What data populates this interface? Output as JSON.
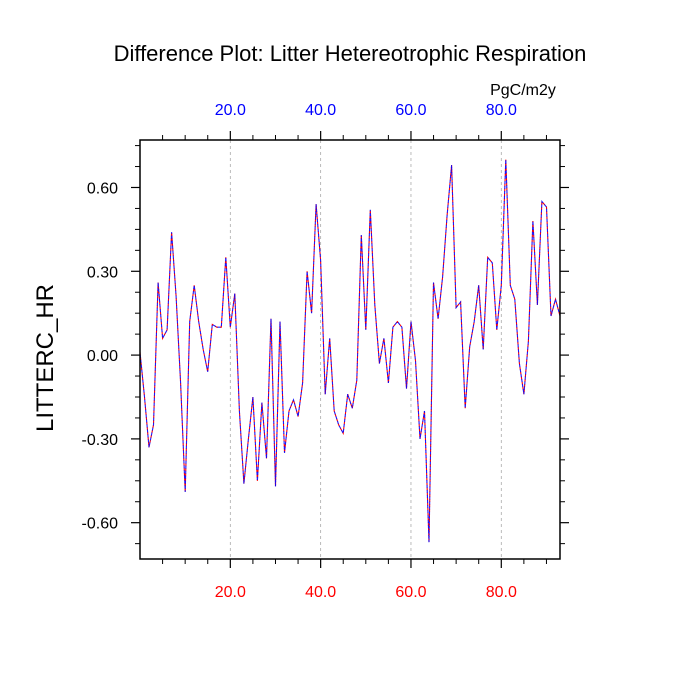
{
  "chart_data": {
    "type": "line",
    "title": "Difference Plot: Litter Hetereotrophic Respiration",
    "ylabel": "LITTERC_HR",
    "units_label": "PgC/m2y",
    "xlim": [
      0,
      93
    ],
    "ylim": [
      -0.73,
      0.77
    ],
    "x_ticks": [
      20,
      40,
      60,
      80
    ],
    "x_tick_labels_bottom": [
      "20.0",
      "40.0",
      "60.0",
      "80.0"
    ],
    "x_tick_labels_top": [
      "20.0",
      "40.0",
      "60.0",
      "80.0"
    ],
    "y_ticks": [
      -0.6,
      -0.3,
      0.0,
      0.3,
      0.6
    ],
    "y_tick_labels": [
      "-0.60",
      "-0.30",
      "0.00",
      "0.30",
      "0.60"
    ],
    "grid": "vertical dashed at major x ticks",
    "colors": {
      "bottom_ticks": "#ff0000",
      "top_ticks": "#0000ff",
      "line_a": "#ff0000",
      "line_b": "#0000ff",
      "axis": "#000000",
      "grid": "#aaaaaa"
    },
    "series": [
      {
        "name": "difference",
        "x": [
          0,
          1,
          2,
          3,
          4,
          5,
          6,
          7,
          8,
          9,
          10,
          11,
          12,
          13,
          14,
          15,
          16,
          17,
          18,
          19,
          20,
          21,
          22,
          23,
          24,
          25,
          26,
          27,
          28,
          29,
          30,
          31,
          32,
          33,
          34,
          35,
          36,
          37,
          38,
          39,
          40,
          41,
          42,
          43,
          44,
          45,
          46,
          47,
          48,
          49,
          50,
          51,
          52,
          53,
          54,
          55,
          56,
          57,
          58,
          59,
          60,
          61,
          62,
          63,
          64,
          65,
          66,
          67,
          68,
          69,
          70,
          71,
          72,
          73,
          74,
          75,
          76,
          77,
          78,
          79,
          80,
          81,
          82,
          83,
          84,
          85,
          86,
          87,
          88,
          89,
          90,
          91,
          92,
          93
        ],
        "values": [
          0.01,
          -0.15,
          -0.33,
          -0.25,
          0.26,
          0.06,
          0.09,
          0.44,
          0.21,
          -0.1,
          -0.49,
          0.12,
          0.25,
          0.12,
          0.02,
          -0.06,
          0.11,
          0.1,
          0.1,
          0.35,
          0.1,
          0.22,
          -0.2,
          -0.46,
          -0.3,
          -0.15,
          -0.45,
          -0.17,
          -0.37,
          0.13,
          -0.47,
          0.12,
          -0.35,
          -0.2,
          -0.16,
          -0.22,
          -0.1,
          0.3,
          0.15,
          0.54,
          0.34,
          -0.14,
          0.06,
          -0.2,
          -0.25,
          -0.28,
          -0.14,
          -0.19,
          -0.09,
          0.43,
          0.09,
          0.52,
          0.18,
          -0.03,
          0.06,
          -0.1,
          0.1,
          0.12,
          0.1,
          -0.12,
          0.12,
          -0.02,
          -0.3,
          -0.2,
          -0.67,
          0.26,
          0.13,
          0.28,
          0.5,
          0.68,
          0.17,
          0.19,
          -0.19,
          0.03,
          0.12,
          0.25,
          0.02,
          0.35,
          0.33,
          0.09,
          0.25,
          0.7,
          0.25,
          0.2,
          -0.03,
          -0.14,
          0.05,
          0.48,
          0.18,
          0.55,
          0.53,
          0.14,
          0.2,
          0.14
        ]
      }
    ]
  }
}
